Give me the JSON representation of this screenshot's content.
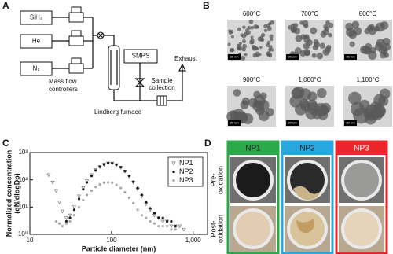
{
  "panel_labels": [
    "A",
    "B",
    "C",
    "D"
  ],
  "diagram": {
    "gases": [
      "SiH₄",
      "He",
      "N₂"
    ],
    "mass_flow_label": [
      "Mass flow",
      "controllers"
    ],
    "smps": "SMPS",
    "exhaust": "Exhaust",
    "sample": [
      "Sample",
      "collection"
    ],
    "furnace": "Lindberg furnace"
  },
  "tem": {
    "temperatures": [
      "600°C",
      "700°C",
      "800°C",
      "900°C",
      "1,000°C",
      "1,100°C"
    ],
    "scale_bar": "20 nm"
  },
  "chart_data": {
    "type": "scatter",
    "xlabel": "Particle diameter (nm)",
    "ylabel": [
      "Normalized concentration",
      "(dN/dlogDp)"
    ],
    "xscale": "log",
    "yscale": "log",
    "legend": "upper right",
    "xlim": [
      10,
      1500
    ],
    "xticks": [
      10,
      100,
      {
        "value": 1000,
        "label": "1,000"
      }
    ],
    "ylim": [
      1,
      1000
    ],
    "yticks": [
      {
        "value": 1,
        "label": "10⁰"
      },
      {
        "value": 10,
        "label": "10¹"
      },
      {
        "value": 100,
        "label": "10²"
      },
      {
        "value": 1000,
        "label": "10³"
      }
    ],
    "x": [
      17,
      19,
      21,
      23,
      25,
      28,
      31,
      35,
      40,
      45,
      50,
      57,
      64,
      72,
      81,
      91,
      102,
      115,
      130,
      146,
      165,
      185,
      209,
      235,
      265,
      298,
      336,
      378,
      426,
      480,
      540,
      608,
      685,
      771
    ],
    "series": [
      {
        "name": "NP1",
        "color": "#8a8a8a",
        "marker": "triangle",
        "values": [
          150,
          80,
          40,
          15,
          7,
          4,
          5,
          10,
          25,
          50,
          90,
          150,
          230,
          300,
          360,
          400,
          400,
          350,
          280,
          200,
          130,
          80,
          45,
          25,
          13,
          8,
          5,
          4,
          3,
          3,
          2,
          2,
          2,
          1.5
        ]
      },
      {
        "name": "NP2",
        "color": "#1a1a1a",
        "marker": "circle",
        "values": [
          null,
          null,
          null,
          null,
          null,
          3,
          4,
          8,
          20,
          45,
          80,
          140,
          220,
          300,
          370,
          410,
          400,
          360,
          290,
          210,
          140,
          85,
          50,
          28,
          15,
          9,
          6,
          4,
          4,
          3,
          3,
          2,
          null,
          null
        ]
      },
      {
        "name": "NP3",
        "color": "#aaaaaa",
        "marker": "circle",
        "values": [
          null,
          null,
          3,
          2.5,
          2,
          2.5,
          3,
          5,
          10,
          18,
          28,
          40,
          55,
          68,
          78,
          80,
          78,
          65,
          50,
          35,
          22,
          14,
          8,
          5,
          4,
          3,
          2.5,
          2,
          2,
          2,
          1.5,
          1.5,
          null,
          null
        ]
      }
    ]
  },
  "photos": {
    "columns": [
      {
        "name": "NP1",
        "color": "#2aa84a"
      },
      {
        "name": "NP2",
        "color": "#29a8e0"
      },
      {
        "name": "NP3",
        "color": "#e8262b"
      }
    ],
    "rows": [
      [
        "Pre-",
        "oxidation"
      ],
      [
        "Post-",
        "oxidation"
      ]
    ]
  }
}
